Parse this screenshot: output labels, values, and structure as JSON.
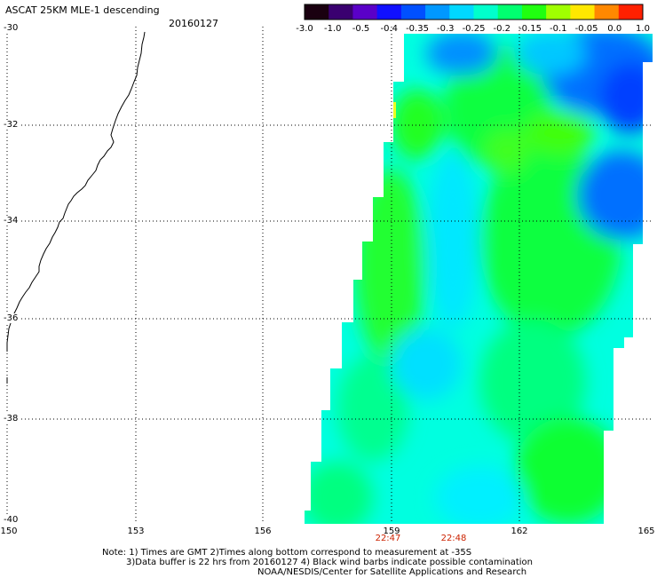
{
  "title": "ASCAT 25KM MLE-1 descending",
  "date": "20160127",
  "colorbar": {
    "ticks": [
      "-3.0",
      "-1.0",
      "-0.5",
      "-0.4",
      "-0.35",
      "-0.3",
      "-0.25",
      "-0.2",
      "-0.15",
      "-0.1",
      "-0.05",
      "0.0",
      "1.0"
    ],
    "colors": [
      "#1a0010",
      "#3a0070",
      "#5a00c8",
      "#1010ff",
      "#0050ff",
      "#0098ff",
      "#00d8ff",
      "#00ffcc",
      "#00ff70",
      "#20ff10",
      "#a0ff00",
      "#ffe800",
      "#ff8800",
      "#ff2000"
    ]
  },
  "axes": {
    "y_labels": [
      "-30",
      "-32",
      "-34",
      "-36",
      "-38",
      "-40"
    ],
    "x_labels": [
      "150",
      "153",
      "156",
      "159",
      "162",
      "165"
    ]
  },
  "pass_times": [
    "22:47",
    "22:48"
  ],
  "notes": [
    "Note: 1) Times are GMT 2)Times along bottom correspond to measurement at -35S",
    "3)Data buffer is 22 hrs from 20160127 4) Black wind barbs indicate possible contamination",
    "NOAA/NESDIS/Center for Satellite Applications and Research"
  ],
  "swath": {
    "field_regions": [
      {
        "name": "northeast-blue-low",
        "value": -0.4
      },
      {
        "name": "central-green-band",
        "value": -0.15
      },
      {
        "name": "cyan-background",
        "value": -0.3
      },
      {
        "name": "west-edge-yellow",
        "value": -0.05
      }
    ]
  }
}
